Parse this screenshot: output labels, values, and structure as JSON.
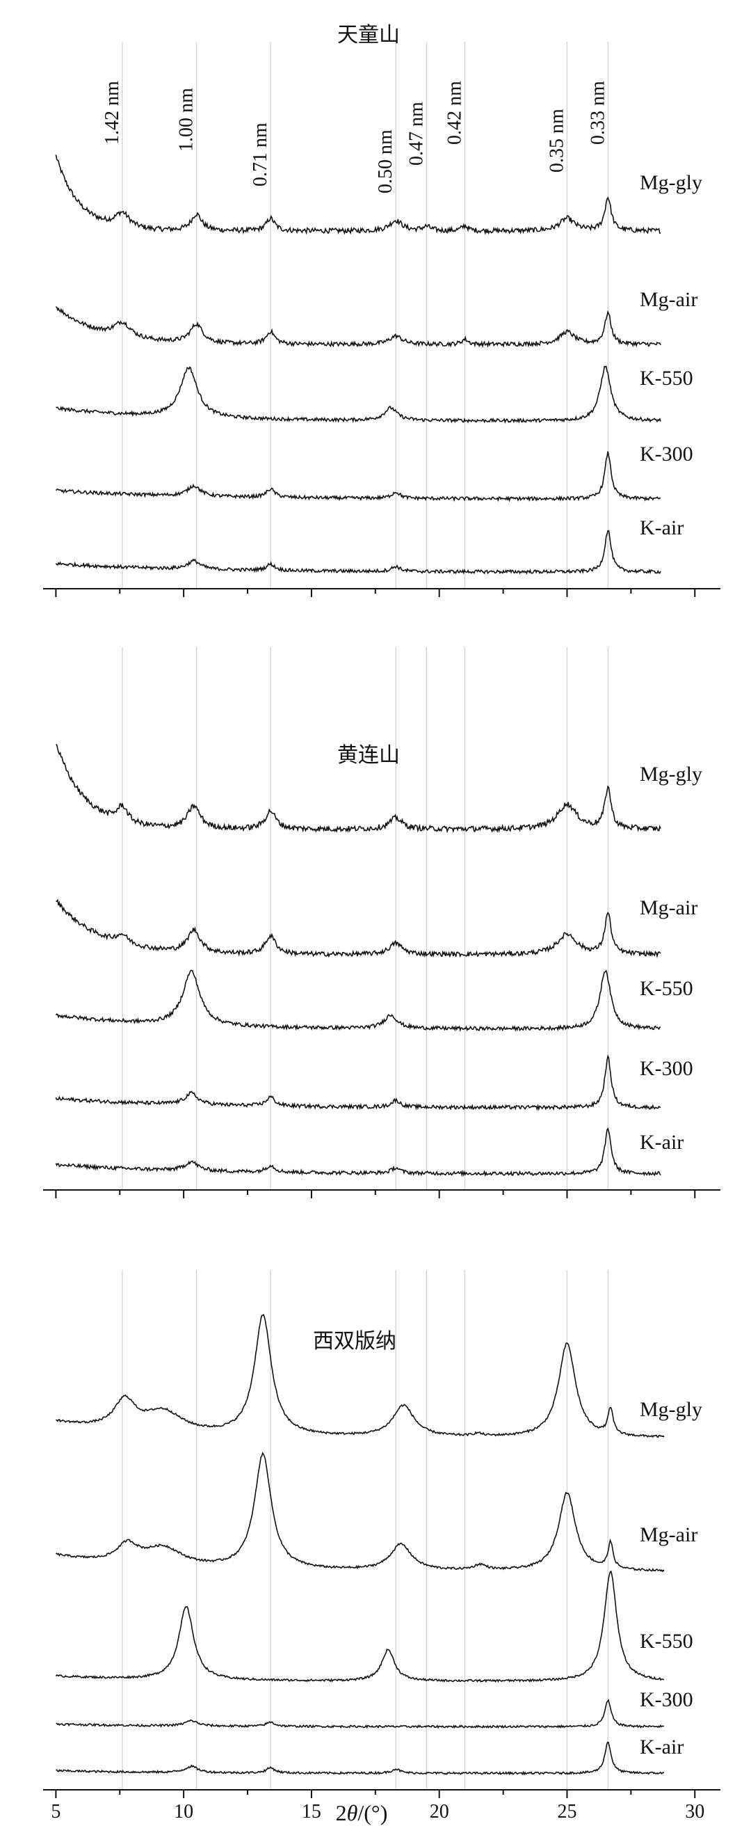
{
  "chart_data": {
    "type": "line",
    "x_label_prefix": "2",
    "x_label_symbol": "θ",
    "x_label_unit": "/(°)",
    "xlim": [
      4.5,
      31
    ],
    "x_tick_labels": [
      {
        "v": 5,
        "label": "5"
      },
      {
        "v": 10,
        "label": "10"
      },
      {
        "v": 15,
        "label": "15"
      },
      {
        "v": 20,
        "label": "20"
      },
      {
        "v": 25,
        "label": "25"
      },
      {
        "v": 30,
        "label": "30"
      }
    ],
    "ref_lines": [
      {
        "x": 7.6,
        "label": "1.42 nm"
      },
      {
        "x": 10.5,
        "label": "1.00 nm"
      },
      {
        "x": 13.4,
        "label": "0.71 nm"
      },
      {
        "x": 18.3,
        "label": "0.50 nm"
      },
      {
        "x": 19.5,
        "label": "0.47 nm"
      },
      {
        "x": 21.0,
        "label": "0.42 nm"
      },
      {
        "x": 25.0,
        "label": "0.35 nm"
      },
      {
        "x": 26.6,
        "label": "0.33 nm"
      }
    ],
    "panels": [
      {
        "title": "天童山",
        "series": [
          {
            "name": "Mg-gly",
            "baseline": 0.05,
            "background": {
              "amp": 1.8,
              "decay": 1.1
            },
            "peaks": [
              [
                7.6,
                0.35,
                0.35
              ],
              [
                10.5,
                0.4,
                0.25
              ],
              [
                13.4,
                0.3,
                0.2
              ],
              [
                18.3,
                0.25,
                0.3
              ],
              [
                19.5,
                0.1,
                0.2
              ],
              [
                21.0,
                0.12,
                0.15
              ],
              [
                25.0,
                0.3,
                0.35
              ],
              [
                26.6,
                0.8,
                0.15
              ]
            ],
            "noise": 0.06
          },
          {
            "name": "Mg-air",
            "baseline": 0.05,
            "background": {
              "amp": 0.9,
              "decay": 0.6
            },
            "peaks": [
              [
                7.6,
                0.35,
                0.4
              ],
              [
                10.5,
                0.45,
                0.3
              ],
              [
                13.4,
                0.3,
                0.2
              ],
              [
                18.3,
                0.2,
                0.3
              ],
              [
                21.0,
                0.12,
                0.15
              ],
              [
                25.0,
                0.3,
                0.35
              ],
              [
                26.6,
                0.75,
                0.15
              ]
            ],
            "noise": 0.05
          },
          {
            "name": "K-550",
            "baseline": 0.05,
            "background": {
              "amp": 0.3,
              "decay": 0.25
            },
            "peaks": [
              [
                10.2,
                1.2,
                0.4
              ],
              [
                18.1,
                0.3,
                0.3
              ],
              [
                26.5,
                1.3,
                0.25
              ]
            ],
            "noise": 0.04
          },
          {
            "name": "K-300",
            "baseline": 0.05,
            "background": {
              "amp": 0.2,
              "decay": 0.2
            },
            "peaks": [
              [
                10.4,
                0.25,
                0.3
              ],
              [
                13.4,
                0.2,
                0.2
              ],
              [
                18.3,
                0.15,
                0.2
              ],
              [
                26.6,
                1.1,
                0.15
              ]
            ],
            "noise": 0.04
          },
          {
            "name": "K-air",
            "baseline": 0.05,
            "background": {
              "amp": 0.2,
              "decay": 0.2
            },
            "peaks": [
              [
                10.4,
                0.2,
                0.3
              ],
              [
                13.4,
                0.15,
                0.2
              ],
              [
                18.3,
                0.12,
                0.2
              ],
              [
                26.6,
                1.0,
                0.15
              ]
            ],
            "noise": 0.04
          }
        ]
      },
      {
        "title": "黄连山",
        "series": [
          {
            "name": "Mg-gly",
            "baseline": 0.05,
            "background": {
              "amp": 1.9,
              "decay": 0.9
            },
            "peaks": [
              [
                7.6,
                0.35,
                0.25
              ],
              [
                10.4,
                0.5,
                0.3
              ],
              [
                13.4,
                0.4,
                0.25
              ],
              [
                18.3,
                0.25,
                0.3
              ],
              [
                25.0,
                0.55,
                0.45
              ],
              [
                26.6,
                0.9,
                0.15
              ]
            ],
            "noise": 0.06
          },
          {
            "name": "Mg-air",
            "baseline": 0.05,
            "background": {
              "amp": 1.2,
              "decay": 0.6
            },
            "peaks": [
              [
                7.6,
                0.2,
                0.3
              ],
              [
                10.4,
                0.5,
                0.3
              ],
              [
                13.4,
                0.4,
                0.25
              ],
              [
                18.3,
                0.25,
                0.3
              ],
              [
                25.0,
                0.45,
                0.45
              ],
              [
                26.6,
                0.9,
                0.15
              ]
            ],
            "noise": 0.05
          },
          {
            "name": "K-550",
            "baseline": 0.05,
            "background": {
              "amp": 0.3,
              "decay": 0.25
            },
            "peaks": [
              [
                10.3,
                1.2,
                0.4
              ],
              [
                18.1,
                0.3,
                0.3
              ],
              [
                26.5,
                1.3,
                0.25
              ]
            ],
            "noise": 0.04
          },
          {
            "name": "K-300",
            "baseline": 0.05,
            "background": {
              "amp": 0.2,
              "decay": 0.2
            },
            "peaks": [
              [
                10.3,
                0.25,
                0.3
              ],
              [
                13.4,
                0.2,
                0.2
              ],
              [
                18.3,
                0.15,
                0.2
              ],
              [
                26.6,
                1.1,
                0.15
              ]
            ],
            "noise": 0.04
          },
          {
            "name": "K-air",
            "baseline": 0.05,
            "background": {
              "amp": 0.2,
              "decay": 0.2
            },
            "peaks": [
              [
                10.3,
                0.2,
                0.3
              ],
              [
                13.4,
                0.15,
                0.2
              ],
              [
                18.3,
                0.12,
                0.2
              ],
              [
                26.6,
                1.0,
                0.15
              ]
            ],
            "noise": 0.04
          }
        ]
      },
      {
        "title": "西双版纳",
        "series": [
          {
            "name": "Mg-gly",
            "baseline": 0.05,
            "background": {
              "amp": 0.3,
              "decay": 0.3
            },
            "peaks": [
              [
                7.7,
                0.55,
                0.5
              ],
              [
                9.2,
                0.4,
                0.9
              ],
              [
                13.1,
                2.3,
                0.4
              ],
              [
                18.6,
                0.6,
                0.5
              ],
              [
                21.5,
                0.05,
                0.2
              ],
              [
                25.0,
                1.8,
                0.4
              ],
              [
                26.7,
                0.5,
                0.12
              ]
            ],
            "noise": 0.02
          },
          {
            "name": "Mg-air",
            "baseline": 0.05,
            "background": {
              "amp": 0.3,
              "decay": 0.3
            },
            "peaks": [
              [
                7.8,
                0.35,
                0.5
              ],
              [
                9.2,
                0.35,
                0.9
              ],
              [
                13.1,
                2.2,
                0.4
              ],
              [
                18.5,
                0.5,
                0.5
              ],
              [
                21.6,
                0.1,
                0.3
              ],
              [
                25.0,
                1.5,
                0.4
              ],
              [
                26.7,
                0.5,
                0.12
              ]
            ],
            "noise": 0.02
          },
          {
            "name": "K-550",
            "baseline": 0.05,
            "background": {
              "amp": 0.1,
              "decay": 0.25
            },
            "peaks": [
              [
                10.1,
                1.4,
                0.35
              ],
              [
                18.0,
                0.6,
                0.3
              ],
              [
                26.7,
                2.1,
                0.3
              ]
            ],
            "noise": 0.02
          },
          {
            "name": "K-300",
            "baseline": 0.05,
            "background": {
              "amp": 0.05,
              "decay": 0.25
            },
            "peaks": [
              [
                10.3,
                0.1,
                0.3
              ],
              [
                13.4,
                0.08,
                0.2
              ],
              [
                26.6,
                0.5,
                0.15
              ]
            ],
            "noise": 0.02
          },
          {
            "name": "K-air",
            "baseline": 0.05,
            "background": {
              "amp": 0.05,
              "decay": 0.25
            },
            "peaks": [
              [
                10.3,
                0.12,
                0.3
              ],
              [
                13.4,
                0.1,
                0.2
              ],
              [
                18.3,
                0.08,
                0.2
              ],
              [
                26.6,
                0.6,
                0.15
              ]
            ],
            "noise": 0.02
          }
        ]
      }
    ]
  }
}
